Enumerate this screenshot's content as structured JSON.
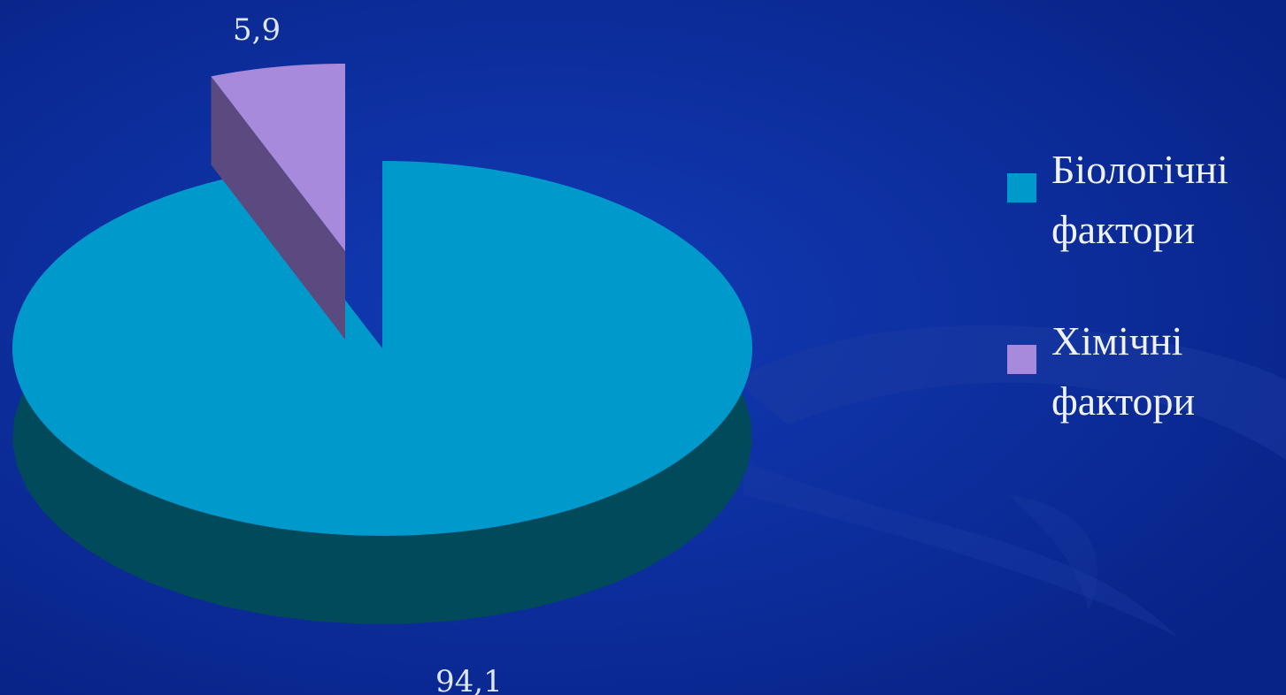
{
  "chart_data": {
    "type": "pie",
    "style": "3d-exploded",
    "title": "",
    "slices": [
      {
        "label": "Біологічні фактори",
        "value": 94.1,
        "display_value": "94,1",
        "color": "#0099cc",
        "side_color": "#004a5b"
      },
      {
        "label": "Хімічні фактори",
        "value": 5.9,
        "display_value": "5,9",
        "color": "#a88add",
        "side_color": "#5a4a80"
      }
    ],
    "legend_placement": "right"
  },
  "theme": {
    "background": "#0b2b98",
    "label_color": "#dfe6ff"
  }
}
